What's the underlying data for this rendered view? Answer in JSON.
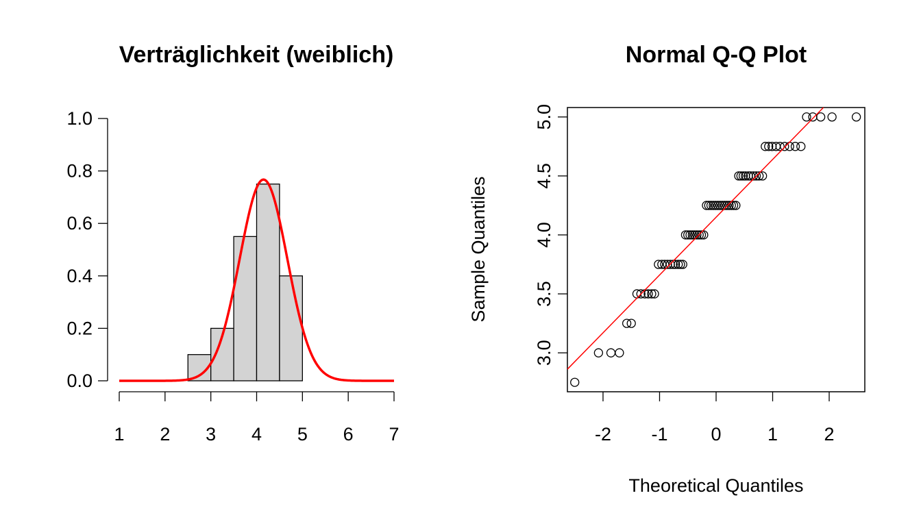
{
  "chart_data": [
    {
      "type": "histogram",
      "title": "Verträglichkeit (weiblich)",
      "xlabel": "",
      "ylabel": "",
      "xlim": [
        1,
        7
      ],
      "ylim": [
        0,
        1.0
      ],
      "x_ticks": [
        "1",
        "2",
        "3",
        "4",
        "5",
        "6",
        "7"
      ],
      "y_ticks": [
        "0.0",
        "0.2",
        "0.4",
        "0.6",
        "0.8",
        "1.0"
      ],
      "bins": [
        {
          "start": 2.5,
          "end": 3.0,
          "density": 0.1
        },
        {
          "start": 3.0,
          "end": 3.5,
          "density": 0.2
        },
        {
          "start": 3.5,
          "end": 4.0,
          "density": 0.55
        },
        {
          "start": 4.0,
          "end": 4.5,
          "density": 0.75
        },
        {
          "start": 4.5,
          "end": 5.0,
          "density": 0.4
        }
      ],
      "bar_color": "#d3d3d3",
      "density_curve": {
        "type": "normal",
        "mean": 4.15,
        "sd": 0.52,
        "x_range": [
          1,
          7
        ],
        "color": "#ff0000"
      },
      "grid": false
    },
    {
      "type": "scatter",
      "title": "Normal Q-Q Plot",
      "xlabel": "Theoretical Quantiles",
      "ylabel": "Sample Quantiles",
      "xlim": [
        -2.63,
        2.63
      ],
      "ylim": [
        2.67,
        5.08
      ],
      "x_ticks": [
        "-2",
        "-1",
        "0",
        "1",
        "2"
      ],
      "y_ticks": [
        "3.0",
        "3.5",
        "4.0",
        "4.5",
        "5.0"
      ],
      "points": [
        [
          -2.5,
          2.75
        ],
        [
          -2.08,
          3.0
        ],
        [
          -1.86,
          3.0
        ],
        [
          -1.71,
          3.0
        ],
        [
          -1.58,
          3.25
        ],
        [
          -1.5,
          3.25
        ],
        [
          -1.4,
          3.5
        ],
        [
          -1.33,
          3.5
        ],
        [
          -1.26,
          3.5
        ],
        [
          -1.2,
          3.5
        ],
        [
          -1.14,
          3.5
        ],
        [
          -1.09,
          3.5
        ],
        [
          -1.02,
          3.75
        ],
        [
          -0.96,
          3.75
        ],
        [
          -0.91,
          3.75
        ],
        [
          -0.86,
          3.75
        ],
        [
          -0.81,
          3.75
        ],
        [
          -0.76,
          3.75
        ],
        [
          -0.72,
          3.75
        ],
        [
          -0.67,
          3.75
        ],
        [
          -0.63,
          3.75
        ],
        [
          -0.59,
          3.75
        ],
        [
          -0.54,
          4.0
        ],
        [
          -0.5,
          4.0
        ],
        [
          -0.46,
          4.0
        ],
        [
          -0.42,
          4.0
        ],
        [
          -0.38,
          4.0
        ],
        [
          -0.34,
          4.0
        ],
        [
          -0.3,
          4.0
        ],
        [
          -0.26,
          4.0
        ],
        [
          -0.22,
          4.0
        ],
        [
          -0.17,
          4.25
        ],
        [
          -0.13,
          4.25
        ],
        [
          -0.09,
          4.25
        ],
        [
          -0.05,
          4.25
        ],
        [
          -0.01,
          4.25
        ],
        [
          0.03,
          4.25
        ],
        [
          0.07,
          4.25
        ],
        [
          0.11,
          4.25
        ],
        [
          0.15,
          4.25
        ],
        [
          0.19,
          4.25
        ],
        [
          0.23,
          4.25
        ],
        [
          0.27,
          4.25
        ],
        [
          0.31,
          4.25
        ],
        [
          0.35,
          4.25
        ],
        [
          0.4,
          4.5
        ],
        [
          0.44,
          4.5
        ],
        [
          0.48,
          4.5
        ],
        [
          0.52,
          4.5
        ],
        [
          0.57,
          4.5
        ],
        [
          0.61,
          4.5
        ],
        [
          0.66,
          4.5
        ],
        [
          0.71,
          4.5
        ],
        [
          0.76,
          4.5
        ],
        [
          0.82,
          4.5
        ],
        [
          0.87,
          4.75
        ],
        [
          0.93,
          4.75
        ],
        [
          0.99,
          4.75
        ],
        [
          1.06,
          4.75
        ],
        [
          1.13,
          4.75
        ],
        [
          1.21,
          4.75
        ],
        [
          1.3,
          4.75
        ],
        [
          1.4,
          4.75
        ],
        [
          1.5,
          4.75
        ],
        [
          1.6,
          5.0
        ],
        [
          1.71,
          5.0
        ],
        [
          1.85,
          5.0
        ],
        [
          2.05,
          5.0
        ],
        [
          2.48,
          5.0
        ]
      ],
      "reference_line": {
        "intercept": 4.15,
        "slope": 0.49,
        "color": "#ff0000"
      },
      "point_style": "open circle",
      "grid": false
    }
  ]
}
